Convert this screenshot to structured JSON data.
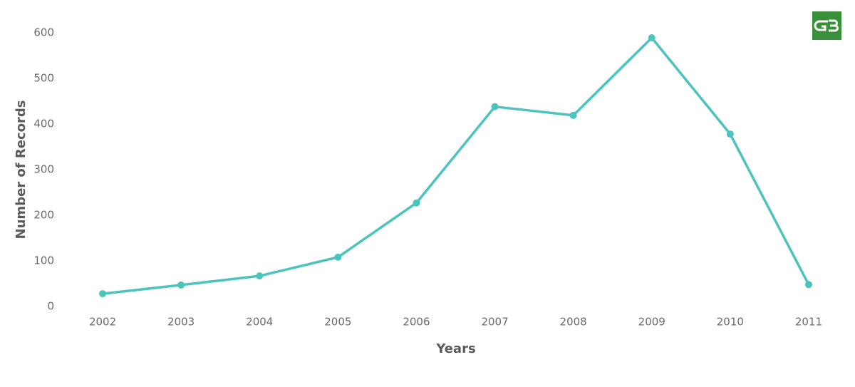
{
  "chart_data": {
    "type": "line",
    "x_label": "Years",
    "y_label": "Number of Records",
    "categories": [
      "2002",
      "2003",
      "2004",
      "2005",
      "2006",
      "2007",
      "2008",
      "2009",
      "2010",
      "2011"
    ],
    "series": [
      {
        "name": "Records",
        "color": "#4cc3bc",
        "values": [
          28,
          47,
          67,
          108,
          227,
          438,
          419,
          589,
          378,
          48
        ]
      }
    ],
    "ylim": [
      0,
      600
    ],
    "yticks": [
      0,
      100,
      200,
      300,
      400,
      500,
      600
    ],
    "grid": false,
    "legend": false
  }
}
